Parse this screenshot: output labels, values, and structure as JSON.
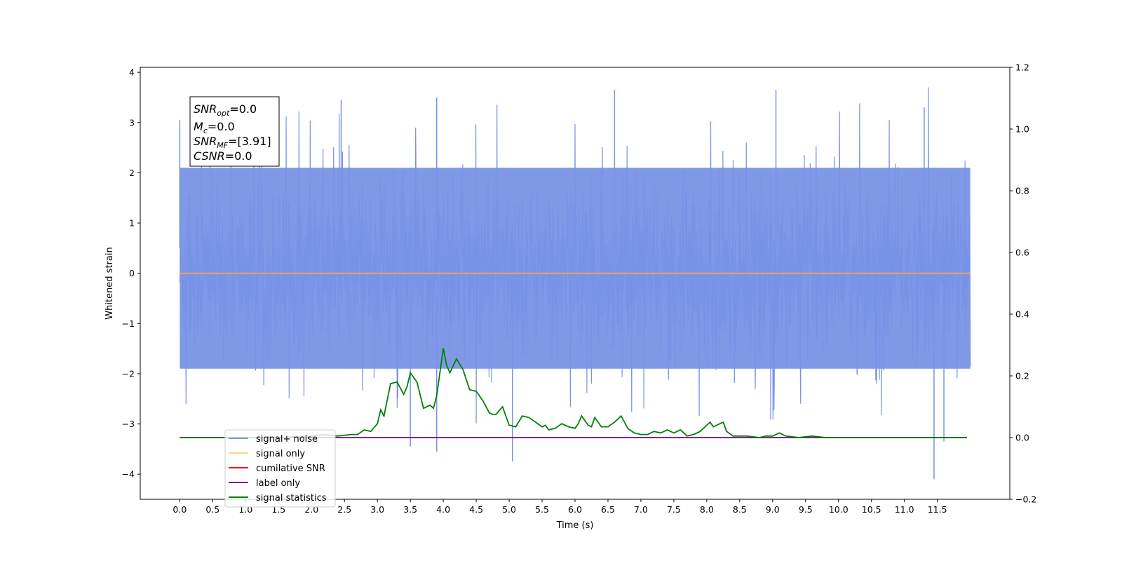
{
  "chart_data": {
    "type": "line",
    "xlabel": "Time (s)",
    "ylabel": "Whitened strain",
    "xlim": [
      -0.6,
      12.6
    ],
    "ylim": [
      -4.5,
      4.1
    ],
    "y2lim": [
      -0.2,
      1.2
    ],
    "x_ticks": [
      0.0,
      0.5,
      1.0,
      1.5,
      2.0,
      2.5,
      3.0,
      3.5,
      4.0,
      4.5,
      5.0,
      5.5,
      6.0,
      6.5,
      7.0,
      7.5,
      8.0,
      8.5,
      9.0,
      9.5,
      10.0,
      10.5,
      11.0,
      11.5
    ],
    "x_tick_labels": [
      "0.0",
      "0.5",
      "1.0",
      "1.5",
      "2.0",
      "2.5",
      "3.0",
      "3.5",
      "4.0",
      "4.5",
      "5.0",
      "5.5",
      "6.0",
      "6.5",
      "7.0",
      "7.5",
      "8.0",
      "8.5",
      "9.0",
      "9.5",
      "10.0",
      "10.5",
      "11.0",
      "11.5"
    ],
    "y_ticks": [
      4,
      3,
      2,
      1,
      0,
      -1,
      -2,
      -3,
      -4
    ],
    "y_tick_labels": [
      "4",
      "3",
      "2",
      "1",
      "0",
      "−1",
      "−2",
      "−3",
      "−4"
    ],
    "y2_ticks": [
      1.2,
      1.0,
      0.8,
      0.6,
      0.4,
      0.2,
      0.0,
      -0.2
    ],
    "y2_tick_labels": [
      "1.2",
      "1.0",
      "0.8",
      "0.6",
      "0.4",
      "0.2",
      "0.0",
      "−0.2"
    ],
    "grid": false,
    "legend_position": "lower-left",
    "annotation": {
      "lines": [
        {
          "base": "SNR",
          "sub": "opt",
          "rest": "=0.0"
        },
        {
          "base": "M",
          "sub": "c",
          "rest": "=0.0"
        },
        {
          "base": "SNR",
          "sub": "MF",
          "rest": "=[3.91]"
        },
        {
          "base": "CSNR",
          "sub": "",
          "rest": "=0.0"
        }
      ]
    },
    "series": [
      {
        "name": "signal+ noise",
        "color": "#7893e6",
        "axis": "left",
        "kind": "noise",
        "x_range": [
          0.0,
          12.0
        ],
        "typical_envelope": [
          -1.9,
          2.1
        ],
        "extreme_range": [
          -4.1,
          3.7
        ]
      },
      {
        "name": "signal only",
        "color": "#f5a35a",
        "axis": "left",
        "x": [
          0.0,
          12.0
        ],
        "y": [
          0.0,
          0.0
        ]
      },
      {
        "name": "cumilative SNR",
        "color": "#ff0000",
        "axis": "right",
        "x": [],
        "y": []
      },
      {
        "name": "label only",
        "color": "#800080",
        "axis": "right",
        "x": [
          0.0,
          11.95
        ],
        "y": [
          0.0,
          0.0
        ]
      },
      {
        "name": "signal statistics",
        "color": "#008000",
        "axis": "right",
        "x": [
          0.0,
          0.5,
          1.0,
          1.5,
          2.0,
          2.2,
          2.4,
          2.6,
          2.7,
          2.8,
          2.9,
          3.0,
          3.05,
          3.1,
          3.2,
          3.3,
          3.4,
          3.45,
          3.5,
          3.6,
          3.7,
          3.75,
          3.8,
          3.85,
          3.9,
          4.0,
          4.05,
          4.1,
          4.2,
          4.3,
          4.4,
          4.5,
          4.6,
          4.7,
          4.75,
          4.8,
          4.9,
          5.0,
          5.1,
          5.2,
          5.3,
          5.4,
          5.5,
          5.55,
          5.6,
          5.7,
          5.8,
          5.9,
          6.0,
          6.05,
          6.1,
          6.2,
          6.25,
          6.3,
          6.4,
          6.5,
          6.6,
          6.7,
          6.8,
          6.9,
          7.0,
          7.1,
          7.2,
          7.3,
          7.4,
          7.5,
          7.6,
          7.7,
          7.8,
          7.9,
          8.0,
          8.05,
          8.1,
          8.2,
          8.25,
          8.3,
          8.4,
          8.5,
          8.6,
          8.8,
          8.9,
          9.0,
          9.05,
          9.1,
          9.2,
          9.4,
          9.6,
          9.8,
          9.9,
          10.0,
          10.5,
          11.0,
          11.5,
          11.95
        ],
        "y": [
          0.0,
          0.0,
          0.0,
          0.0,
          0.005,
          0.01,
          0.005,
          0.01,
          0.01,
          0.025,
          0.02,
          0.045,
          0.09,
          0.07,
          0.175,
          0.18,
          0.14,
          0.165,
          0.21,
          0.18,
          0.095,
          0.1,
          0.105,
          0.095,
          0.135,
          0.29,
          0.235,
          0.21,
          0.255,
          0.22,
          0.155,
          0.15,
          0.12,
          0.08,
          0.075,
          0.075,
          0.1,
          0.04,
          0.035,
          0.07,
          0.065,
          0.05,
          0.035,
          0.04,
          0.025,
          0.03,
          0.045,
          0.035,
          0.03,
          0.045,
          0.07,
          0.04,
          0.035,
          0.065,
          0.035,
          0.035,
          0.05,
          0.07,
          0.03,
          0.015,
          0.01,
          0.01,
          0.02,
          0.015,
          0.025,
          0.015,
          0.025,
          0.005,
          0.01,
          0.02,
          0.04,
          0.05,
          0.035,
          0.045,
          0.05,
          0.02,
          0.005,
          0.005,
          0.005,
          0.0,
          0.005,
          0.005,
          0.01,
          0.015,
          0.005,
          0.0,
          0.005,
          0.0,
          0.0,
          0.0,
          0.0,
          0.0,
          0.0,
          0.0
        ]
      }
    ]
  }
}
